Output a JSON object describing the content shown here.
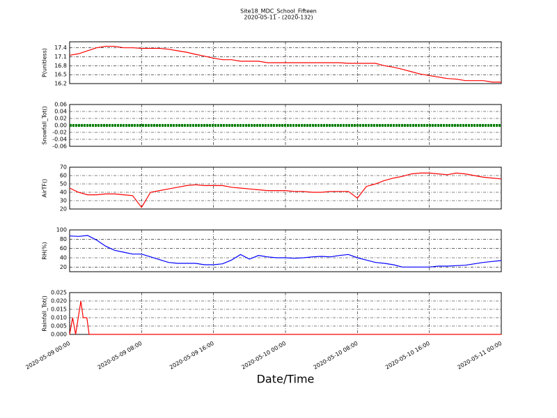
{
  "chart_data": [
    {
      "type": "line",
      "title": "Site18_MDC_School_Fifteen",
      "subtitle": "2020-05-11 - (2020-132)",
      "ylabel": "P(unitless)",
      "color": "#ff0000",
      "x": [
        "2020-05-09 00:00",
        "2020-05-09 01:00",
        "2020-05-09 02:00",
        "2020-05-09 03:00",
        "2020-05-09 04:00",
        "2020-05-09 05:00",
        "2020-05-09 06:00",
        "2020-05-09 07:00",
        "2020-05-09 08:00",
        "2020-05-09 09:00",
        "2020-05-09 10:00",
        "2020-05-09 11:00",
        "2020-05-09 12:00",
        "2020-05-09 13:00",
        "2020-05-09 14:00",
        "2020-05-09 15:00",
        "2020-05-09 16:00",
        "2020-05-09 17:00",
        "2020-05-09 18:00",
        "2020-05-09 19:00",
        "2020-05-09 20:00",
        "2020-05-09 21:00",
        "2020-05-09 22:00",
        "2020-05-09 23:00",
        "2020-05-10 00:00",
        "2020-05-10 01:00",
        "2020-05-10 02:00",
        "2020-05-10 03:00",
        "2020-05-10 04:00",
        "2020-05-10 05:00",
        "2020-05-10 06:00",
        "2020-05-10 07:00",
        "2020-05-10 08:00",
        "2020-05-10 09:00",
        "2020-05-10 10:00",
        "2020-05-10 11:00",
        "2020-05-10 12:00",
        "2020-05-10 13:00",
        "2020-05-10 14:00",
        "2020-05-10 15:00",
        "2020-05-10 16:00",
        "2020-05-10 17:00",
        "2020-05-10 18:00",
        "2020-05-10 19:00",
        "2020-05-10 20:00",
        "2020-05-10 21:00",
        "2020-05-10 22:00",
        "2020-05-10 23:00",
        "2020-05-11 00:00"
      ],
      "values": [
        17.15,
        17.2,
        17.3,
        17.4,
        17.45,
        17.45,
        17.4,
        17.4,
        17.38,
        17.38,
        17.38,
        17.35,
        17.3,
        17.25,
        17.18,
        17.12,
        17.05,
        17.0,
        17.0,
        16.95,
        16.95,
        16.95,
        16.9,
        16.9,
        16.9,
        16.9,
        16.9,
        16.9,
        16.9,
        16.9,
        16.9,
        16.88,
        16.88,
        16.88,
        16.88,
        16.8,
        16.75,
        16.68,
        16.6,
        16.52,
        16.47,
        16.42,
        16.37,
        16.35,
        16.3,
        16.3,
        16.3,
        16.25,
        16.25
      ],
      "xlim": [
        "2020-05-09 00:00",
        "2020-05-11 00:00"
      ],
      "xticks": [
        "2020-05-09 00:00",
        "2020-05-09 08:00",
        "2020-05-09 16:00",
        "2020-05-10 00:00",
        "2020-05-10 08:00",
        "2020-05-10 16:00",
        "2020-05-11 00:00"
      ],
      "ylim": [
        16.2,
        17.6
      ],
      "yticks": [
        16.2,
        16.5,
        16.8,
        17.1,
        17.4
      ],
      "grid": true
    },
    {
      "type": "line",
      "ylabel": "Snowfall_Tot()",
      "color": "#008000",
      "x": [
        "2020-05-09 00:00",
        "2020-05-11 00:00"
      ],
      "values": [
        0,
        0
      ],
      "xlim": [
        "2020-05-09 00:00",
        "2020-05-11 00:00"
      ],
      "xticks": [
        "2020-05-09 00:00",
        "2020-05-09 08:00",
        "2020-05-09 16:00",
        "2020-05-10 00:00",
        "2020-05-10 08:00",
        "2020-05-10 16:00",
        "2020-05-11 00:00"
      ],
      "ylim": [
        -0.06,
        0.06
      ],
      "yticks": [
        {
          "value": -0.06,
          "label": "-0.06"
        },
        {
          "value": -0.04,
          "label": "-0.04"
        },
        {
          "value": -0.02,
          "label": "-0.02"
        },
        {
          "value": 0,
          "label": "0.00"
        },
        {
          "value": 0.02,
          "label": "0.02"
        },
        {
          "value": 0.04,
          "label": "0.04"
        },
        {
          "value": 0.06,
          "label": "0.06"
        }
      ],
      "grid": true
    },
    {
      "type": "line",
      "ylabel": "AirTF()",
      "color": "#ff0000",
      "x": [
        "2020-05-09 00:00",
        "2020-05-09 01:00",
        "2020-05-09 02:00",
        "2020-05-09 03:00",
        "2020-05-09 04:00",
        "2020-05-09 05:00",
        "2020-05-09 06:00",
        "2020-05-09 07:00",
        "2020-05-09 08:00",
        "2020-05-09 09:00",
        "2020-05-09 10:00",
        "2020-05-09 11:00",
        "2020-05-09 12:00",
        "2020-05-09 13:00",
        "2020-05-09 14:00",
        "2020-05-09 15:00",
        "2020-05-09 16:00",
        "2020-05-09 17:00",
        "2020-05-09 18:00",
        "2020-05-09 19:00",
        "2020-05-09 20:00",
        "2020-05-09 21:00",
        "2020-05-09 22:00",
        "2020-05-09 23:00",
        "2020-05-10 00:00",
        "2020-05-10 01:00",
        "2020-05-10 02:00",
        "2020-05-10 03:00",
        "2020-05-10 04:00",
        "2020-05-10 05:00",
        "2020-05-10 06:00",
        "2020-05-10 07:00",
        "2020-05-10 08:00",
        "2020-05-10 09:00",
        "2020-05-10 10:00",
        "2020-05-10 11:00",
        "2020-05-10 12:00",
        "2020-05-10 13:00",
        "2020-05-10 14:00",
        "2020-05-10 15:00",
        "2020-05-10 16:00",
        "2020-05-10 17:00",
        "2020-05-10 18:00",
        "2020-05-10 19:00",
        "2020-05-10 20:00",
        "2020-05-10 21:00",
        "2020-05-10 22:00",
        "2020-05-10 23:00",
        "2020-05-11 00:00"
      ],
      "values": [
        45,
        40,
        37,
        37,
        38,
        38,
        37,
        36,
        22,
        40,
        42,
        44,
        46,
        48,
        49,
        48,
        48,
        48,
        46,
        45,
        44,
        43,
        42,
        42,
        42,
        41,
        41,
        40,
        40,
        41,
        41,
        41,
        33,
        47,
        50,
        54,
        57,
        59,
        62,
        63,
        63,
        62,
        61,
        63,
        62,
        60,
        58,
        57,
        56
      ],
      "xlim": [
        "2020-05-09 00:00",
        "2020-05-11 00:00"
      ],
      "xticks": [
        "2020-05-09 00:00",
        "2020-05-09 08:00",
        "2020-05-09 16:00",
        "2020-05-10 00:00",
        "2020-05-10 08:00",
        "2020-05-10 16:00",
        "2020-05-11 00:00"
      ],
      "ylim": [
        20,
        70
      ],
      "yticks": [
        20,
        30,
        40,
        50,
        60,
        70
      ],
      "grid": true
    },
    {
      "type": "line",
      "ylabel": "RH(%)",
      "color": "#0000ff",
      "x": [
        "2020-05-09 00:00",
        "2020-05-09 01:00",
        "2020-05-09 02:00",
        "2020-05-09 03:00",
        "2020-05-09 04:00",
        "2020-05-09 05:00",
        "2020-05-09 06:00",
        "2020-05-09 07:00",
        "2020-05-09 08:00",
        "2020-05-09 09:00",
        "2020-05-09 10:00",
        "2020-05-09 11:00",
        "2020-05-09 12:00",
        "2020-05-09 13:00",
        "2020-05-09 14:00",
        "2020-05-09 15:00",
        "2020-05-09 16:00",
        "2020-05-09 17:00",
        "2020-05-09 18:00",
        "2020-05-09 19:00",
        "2020-05-09 20:00",
        "2020-05-09 21:00",
        "2020-05-09 22:00",
        "2020-05-09 23:00",
        "2020-05-10 00:00",
        "2020-05-10 01:00",
        "2020-05-10 02:00",
        "2020-05-10 03:00",
        "2020-05-10 04:00",
        "2020-05-10 05:00",
        "2020-05-10 06:00",
        "2020-05-10 07:00",
        "2020-05-10 08:00",
        "2020-05-10 09:00",
        "2020-05-10 10:00",
        "2020-05-10 11:00",
        "2020-05-10 12:00",
        "2020-05-10 13:00",
        "2020-05-10 14:00",
        "2020-05-10 15:00",
        "2020-05-10 16:00",
        "2020-05-10 17:00",
        "2020-05-10 18:00",
        "2020-05-10 19:00",
        "2020-05-10 20:00",
        "2020-05-10 21:00",
        "2020-05-10 22:00",
        "2020-05-10 23:00",
        "2020-05-11 00:00"
      ],
      "values": [
        87,
        86,
        88,
        78,
        65,
        56,
        52,
        48,
        48,
        42,
        36,
        30,
        28,
        28,
        28,
        25,
        25,
        27,
        35,
        47,
        37,
        45,
        42,
        40,
        40,
        39,
        40,
        42,
        43,
        42,
        45,
        47,
        40,
        35,
        30,
        28,
        25,
        20,
        20,
        20,
        20,
        22,
        22,
        23,
        24,
        27,
        30,
        32,
        34
      ],
      "xlim": [
        "2020-05-09 00:00",
        "2020-05-11 00:00"
      ],
      "xticks": [
        "2020-05-09 00:00",
        "2020-05-09 08:00",
        "2020-05-09 16:00",
        "2020-05-10 00:00",
        "2020-05-10 08:00",
        "2020-05-10 16:00",
        "2020-05-11 00:00"
      ],
      "ylim": [
        10,
        100
      ],
      "yticks": [
        20,
        40,
        60,
        80,
        100
      ],
      "grid": true
    },
    {
      "type": "line",
      "ylabel": "Rainfall_Tot()",
      "xlabel": "Date/Time",
      "color": "#ff0000",
      "x": [
        "2020-05-09 00:00",
        "2020-05-09 00:20",
        "2020-05-09 00:40",
        "2020-05-09 01:15",
        "2020-05-09 01:30",
        "2020-05-09 01:55",
        "2020-05-09 02:10",
        "2020-05-11 00:00"
      ],
      "values": [
        0,
        0.01,
        0,
        0.02,
        0.01,
        0.01,
        0,
        0
      ],
      "xlim": [
        "2020-05-09 00:00",
        "2020-05-11 00:00"
      ],
      "xticks": [
        "2020-05-09 00:00",
        "2020-05-09 08:00",
        "2020-05-09 16:00",
        "2020-05-10 00:00",
        "2020-05-10 08:00",
        "2020-05-10 16:00",
        "2020-05-11 00:00"
      ],
      "ylim": [
        0,
        0.025
      ],
      "yticks": [
        {
          "value": 0,
          "label": "0.000"
        },
        {
          "value": 0.005,
          "label": "0.005"
        },
        {
          "value": 0.01,
          "label": "0.010"
        },
        {
          "value": 0.015,
          "label": "0.015"
        },
        {
          "value": 0.02,
          "label": "0.020"
        },
        {
          "value": 0.025,
          "label": "0.025"
        }
      ],
      "grid": true
    }
  ]
}
